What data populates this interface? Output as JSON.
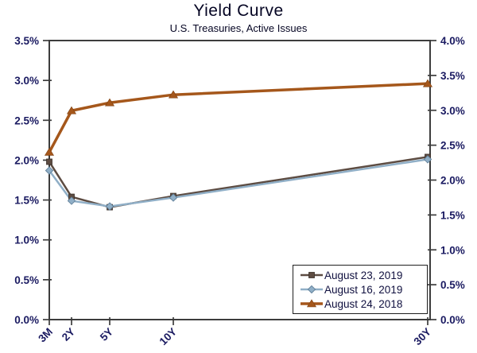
{
  "chart_data": {
    "type": "line",
    "title": "Yield Curve",
    "subtitle": "U.S. Treasuries, Active Issues",
    "categories": [
      "3M",
      "2Y",
      "5Y",
      "10Y",
      "30Y"
    ],
    "category_years": [
      0.25,
      2,
      5,
      10,
      30
    ],
    "series": [
      {
        "name": "August 23, 2019",
        "marker": "square",
        "color": "#5d4c42",
        "marker_edge": "#3a2f28",
        "line_width": 2.5,
        "values": [
          1.98,
          1.54,
          1.41,
          1.55,
          2.04
        ]
      },
      {
        "name": "August 16, 2019",
        "marker": "diamond",
        "color": "#90afc7",
        "marker_edge": "#61809a",
        "line_width": 2.5,
        "values": [
          1.87,
          1.49,
          1.42,
          1.53,
          2.01
        ]
      },
      {
        "name": "August 24, 2018",
        "marker": "triangle",
        "color": "#a5571b",
        "marker_edge": "#7c3f10",
        "line_width": 3.5,
        "values": [
          2.1,
          2.62,
          2.72,
          2.82,
          2.96
        ]
      }
    ],
    "left_axis": {
      "min": 0,
      "max": 3.5,
      "step": 0.5,
      "labels": [
        "0.0%",
        "0.5%",
        "1.0%",
        "1.5%",
        "2.0%",
        "2.5%",
        "3.0%",
        "3.5%"
      ]
    },
    "right_axis": {
      "min": 0,
      "max": 4.0,
      "step": 0.5,
      "labels": [
        "0.0%",
        "0.5%",
        "1.0%",
        "1.5%",
        "2.0%",
        "2.5%",
        "3.0%",
        "3.5%",
        "4.0%"
      ]
    },
    "grid": false,
    "legend_position": "bottom-right"
  },
  "colors": {
    "background": "#ffffff",
    "frame": "#3d3d3d",
    "tick_label": "#1a1a61",
    "title_text": "#050523",
    "legend_border": "#1f1f1f"
  }
}
